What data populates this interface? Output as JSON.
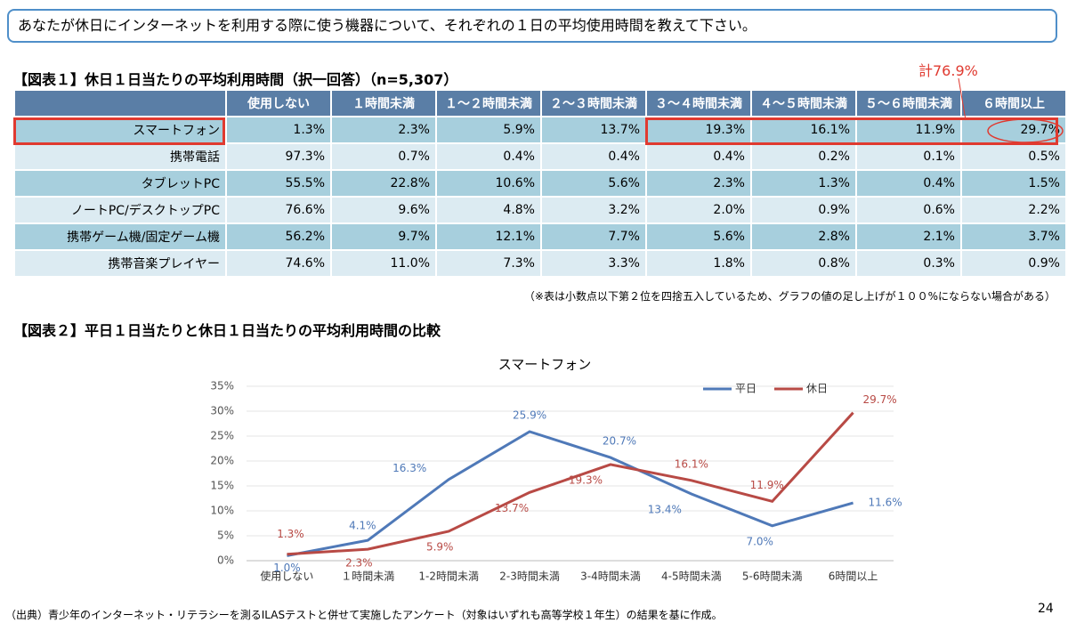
{
  "question": "あなたが休日にインターネットを利用する際に使う機器について、それぞれの１日の平均使用時間を教えて下さい。",
  "table": {
    "title": "【図表１】休日１日当たりの平均利用時間（択一回答）（n=5,307）",
    "columns": [
      "使用しない",
      "１時間未満",
      "１～２時間未満",
      "２～３時間未満",
      "３～４時間未満",
      "４～５時間未満",
      "５～６時間未満",
      "６時間以上"
    ],
    "rows": [
      {
        "label": "スマートフォン",
        "values": [
          "1.3%",
          "2.3%",
          "5.9%",
          "13.7%",
          "19.3%",
          "16.1%",
          "11.9%",
          "29.7%"
        ]
      },
      {
        "label": "携帯電話",
        "values": [
          "97.3%",
          "0.7%",
          "0.4%",
          "0.4%",
          "0.4%",
          "0.2%",
          "0.1%",
          "0.5%"
        ]
      },
      {
        "label": "タブレットPC",
        "values": [
          "55.5%",
          "22.8%",
          "10.6%",
          "5.6%",
          "2.3%",
          "1.3%",
          "0.4%",
          "1.5%"
        ]
      },
      {
        "label": "ノートPC/デスクトップPC",
        "values": [
          "76.6%",
          "9.6%",
          "4.8%",
          "3.2%",
          "2.0%",
          "0.9%",
          "0.6%",
          "2.2%"
        ]
      },
      {
        "label": "携帯ゲーム機/固定ゲーム機",
        "values": [
          "56.2%",
          "9.7%",
          "12.1%",
          "7.7%",
          "5.6%",
          "2.8%",
          "2.1%",
          "3.7%"
        ]
      },
      {
        "label": "携帯音楽プレイヤー",
        "values": [
          "74.6%",
          "11.0%",
          "7.3%",
          "3.3%",
          "1.8%",
          "0.8%",
          "0.3%",
          "0.9%"
        ]
      }
    ],
    "annotation": "計76.9%",
    "note": "（※表は小数点以下第２位を四捨五入しているため、グラフの値の足し上げが１００%にならない場合がある）"
  },
  "section_title": "【図表２】平日１日当たりと休日１日当たりの平均利用時間の比較",
  "chart_data": {
    "type": "line",
    "title": "スマートフォン",
    "categories": [
      "使用しない",
      "１時間未満",
      "1-2時間未満",
      "2-3時間未満",
      "3-4時間未満",
      "4-5時間未満",
      "5-6時間未満",
      "6時間以上"
    ],
    "series": [
      {
        "name": "平日",
        "color": "#4f79b8",
        "values": [
          1.0,
          4.1,
          16.3,
          25.9,
          20.7,
          13.4,
          7.0,
          11.6
        ],
        "value_labels": [
          "1.0%",
          "4.1%",
          "16.3%",
          "25.9%",
          "20.7%",
          "13.4%",
          "7.0%",
          "11.6%"
        ]
      },
      {
        "name": "休日",
        "color": "#b84a45",
        "values": [
          1.3,
          2.3,
          5.9,
          13.7,
          19.3,
          16.1,
          11.9,
          29.7
        ],
        "value_labels": [
          "1.3%",
          "2.3%",
          "5.9%",
          "13.7%",
          "19.3%",
          "16.1%",
          "11.9%",
          "29.7%"
        ]
      }
    ],
    "ylim": [
      0,
      35
    ],
    "yticks": [
      {
        "value": 0,
        "label": "0%"
      },
      {
        "value": 5,
        "label": "5%"
      },
      {
        "value": 10,
        "label": "10%"
      },
      {
        "value": 15,
        "label": "15%"
      },
      {
        "value": 20,
        "label": "20%"
      },
      {
        "value": 25,
        "label": "25%"
      },
      {
        "value": 30,
        "label": "30%"
      },
      {
        "value": 35,
        "label": "35%"
      }
    ],
    "grid": true,
    "legend": "top-right"
  },
  "source": "（出典）青少年のインターネット・リテラシーを測るILASテストと併せて実施したアンケート（対象はいずれも高等学校１年生）の結果を基に作成。",
  "page_number": "24"
}
